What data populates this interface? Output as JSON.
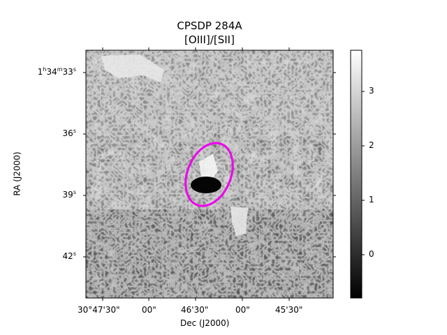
{
  "figure": {
    "title": "CPSDP 284A",
    "subtitle": "[OIII]/[SII]",
    "xlabel": "Dec (J2000)",
    "ylabel": "RA (J2000)",
    "x_ticks": [
      "30°47'30\"",
      "00\"",
      "46'30\"",
      "00\"",
      "45'30\""
    ],
    "y_ticks": [
      {
        "label": "1h34m33s",
        "base": "1",
        "parts": [
          [
            "h",
            "34"
          ],
          [
            "m",
            "33"
          ],
          [
            "s",
            ""
          ]
        ]
      },
      {
        "label": "36s",
        "base": "36",
        "parts": [
          [
            "s",
            ""
          ]
        ]
      },
      {
        "label": "39s",
        "base": "39",
        "parts": [
          [
            "s",
            ""
          ]
        ]
      },
      {
        "label": "42s",
        "base": "42",
        "parts": [
          [
            "s",
            ""
          ]
        ]
      }
    ],
    "colorbar": {
      "ticks": [
        "3",
        "2",
        "1",
        "0"
      ],
      "colormap": "gray",
      "range": [
        -0.8,
        3.8
      ]
    },
    "region": {
      "shape": "ellipse",
      "color": "#ee00ee"
    }
  }
}
